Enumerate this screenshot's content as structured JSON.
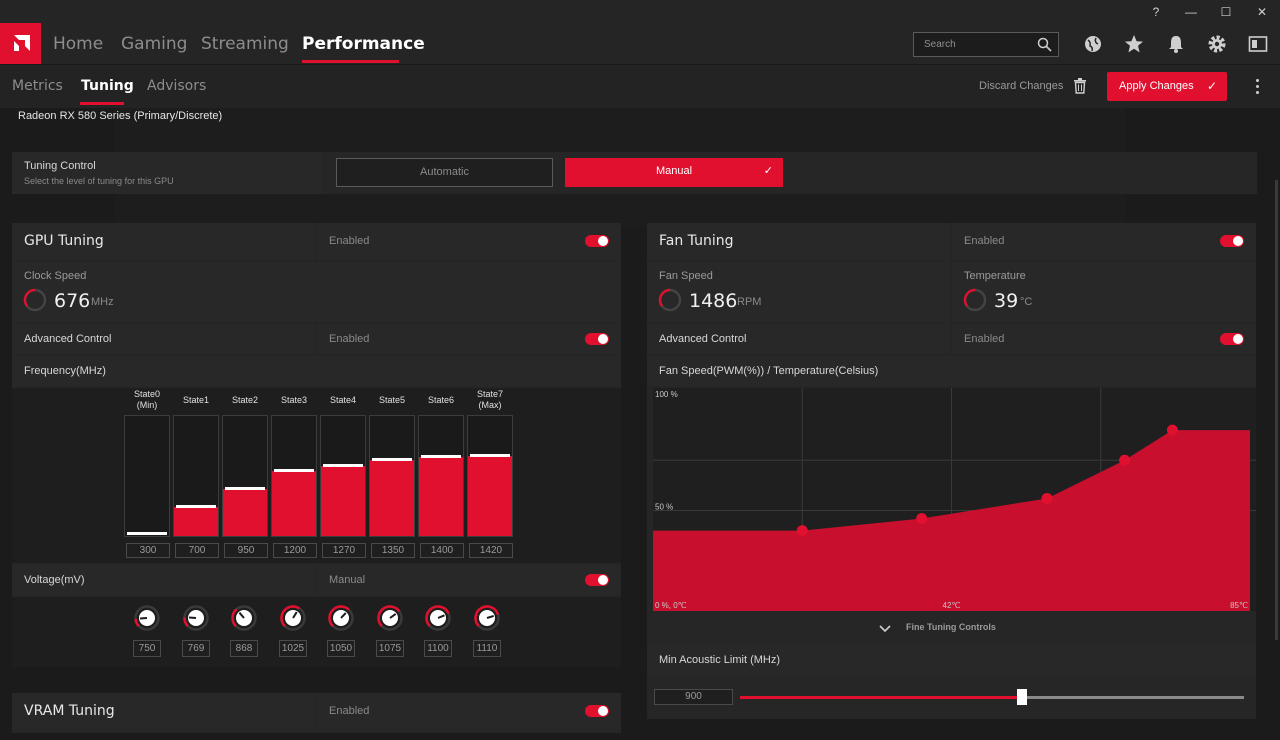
{
  "window": {
    "help": "?",
    "min": "—",
    "max": "☐",
    "close": "✕"
  },
  "nav": {
    "tabs": [
      {
        "label": "Home"
      },
      {
        "label": "Gaming"
      },
      {
        "label": "Streaming"
      },
      {
        "label": "Performance"
      }
    ],
    "active": "Performance",
    "search_placeholder": "Search",
    "icons": [
      "globe-icon",
      "star-icon",
      "bell-icon",
      "gear-icon",
      "sidebar-icon"
    ]
  },
  "subnav": {
    "tabs": [
      {
        "label": "Metrics"
      },
      {
        "label": "Tuning"
      },
      {
        "label": "Advisors"
      }
    ],
    "active": "Tuning",
    "discard": "Discard Changes",
    "apply": "Apply Changes"
  },
  "gpu_name": "Radeon RX 580 Series (Primary/Discrete)",
  "tuning_control": {
    "title": "Tuning Control",
    "subtitle": "Select the level of tuning for this GPU",
    "automatic": "Automatic",
    "manual": "Manual",
    "selected": "Manual"
  },
  "gpu_tuning": {
    "title": "GPU Tuning",
    "status": "Enabled",
    "enabled": true,
    "clock_label": "Clock Speed",
    "clock_value": "676",
    "clock_unit": "MHz",
    "advanced_label": "Advanced Control",
    "advanced_status": "Enabled",
    "frequency_label": "Frequency(MHz)",
    "states": [
      {
        "name": "State0",
        "sub": "(Min)",
        "value": "300",
        "level": 0.0
      },
      {
        "name": "State1",
        "sub": "",
        "value": "700",
        "level": 0.24
      },
      {
        "name": "State2",
        "sub": "",
        "value": "950",
        "level": 0.39
      },
      {
        "name": "State3",
        "sub": "",
        "value": "1200",
        "level": 0.54
      },
      {
        "name": "State4",
        "sub": "",
        "value": "1270",
        "level": 0.58
      },
      {
        "name": "State5",
        "sub": "",
        "value": "1350",
        "level": 0.63
      },
      {
        "name": "State6",
        "sub": "",
        "value": "1400",
        "level": 0.66
      },
      {
        "name": "State7",
        "sub": "(Max)",
        "value": "1420",
        "level": 0.67
      }
    ],
    "voltage_label": "Voltage(mV)",
    "voltage_status": "Manual",
    "voltages": [
      {
        "value": "750",
        "level": 0.15
      },
      {
        "value": "769",
        "level": 0.18
      },
      {
        "value": "868",
        "level": 0.35
      },
      {
        "value": "1025",
        "level": 0.62
      },
      {
        "value": "1050",
        "level": 0.66
      },
      {
        "value": "1075",
        "level": 0.7
      },
      {
        "value": "1100",
        "level": 0.75
      },
      {
        "value": "1110",
        "level": 0.77
      }
    ]
  },
  "vram_tuning": {
    "title": "VRAM Tuning",
    "status": "Enabled"
  },
  "fan_tuning": {
    "title": "Fan Tuning",
    "status": "Enabled",
    "fan_speed_label": "Fan Speed",
    "fan_speed_value": "1486",
    "fan_speed_unit": "RPM",
    "temp_label": "Temperature",
    "temp_value": "39",
    "temp_unit": "°C",
    "advanced_label": "Advanced Control",
    "advanced_status": "Enabled",
    "curve_label": "Fan Speed(PWM(%)) / Temperature(Celsius)",
    "fine_tuning": "Fine Tuning Controls",
    "min_acoustic_label": "Min Acoustic Limit (MHz)",
    "min_acoustic_value": "900",
    "min_acoustic_level": 0.56
  },
  "chart_data": {
    "type": "area",
    "title": "Fan Speed(PWM(%)) / Temperature(Celsius)",
    "y_ticks": [
      "100 %",
      "50 %",
      "0 %, 0℃"
    ],
    "x_ticks": [
      "42℃",
      "85℃"
    ],
    "x": [
      0,
      25,
      45,
      66,
      79,
      87,
      100
    ],
    "y": [
      40,
      40,
      46,
      56,
      75,
      90,
      90
    ],
    "points": [
      [
        25,
        40
      ],
      [
        45,
        46
      ],
      [
        66,
        56
      ],
      [
        79,
        75
      ],
      [
        87,
        90
      ]
    ],
    "ylim": [
      0,
      100
    ],
    "xlim": [
      0,
      100
    ],
    "grid": true,
    "color": "#c8102e"
  }
}
